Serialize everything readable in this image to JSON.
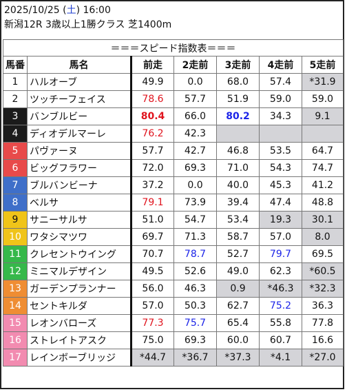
{
  "header": {
    "datetime_prefix": "2025/10/25 (",
    "weekday": "土",
    "datetime_suffix": ") 16:00",
    "race": "新潟12R 3歳以上1勝クラス 芝1400m"
  },
  "table": {
    "banner": "＝＝＝スピード指数表＝＝＝",
    "columns": [
      "馬番",
      "馬名",
      "前走",
      "2走前",
      "3走前",
      "4走前",
      "5走前"
    ],
    "rows": [
      {
        "num": "1",
        "bg": "#ffffff",
        "fg": "#111111",
        "name": "ハルオーブ",
        "vals": [
          {
            "v": "49.9"
          },
          {
            "v": "0.0"
          },
          {
            "v": "68.0"
          },
          {
            "v": "57.4"
          },
          {
            "v": "*31.9",
            "c": "gray"
          }
        ]
      },
      {
        "num": "2",
        "bg": "#ffffff",
        "fg": "#111111",
        "name": "ツッチーフェイス",
        "vals": [
          {
            "v": "78.6",
            "c": "red"
          },
          {
            "v": "57.7"
          },
          {
            "v": "51.9"
          },
          {
            "v": "59.0"
          },
          {
            "v": "59.0"
          }
        ]
      },
      {
        "num": "3",
        "bg": "#1b1b1b",
        "fg": "#ffffff",
        "name": "バンブルビー",
        "vals": [
          {
            "v": "80.4",
            "c": "red bold"
          },
          {
            "v": "66.0"
          },
          {
            "v": "80.2",
            "c": "blue bold"
          },
          {
            "v": "34.3"
          },
          {
            "v": "9.1",
            "c": "gray"
          }
        ]
      },
      {
        "num": "4",
        "bg": "#1b1b1b",
        "fg": "#ffffff",
        "name": "ディオデルマーレ",
        "vals": [
          {
            "v": "76.2",
            "c": "red"
          },
          {
            "v": "42.3"
          },
          {
            "v": "",
            "c": "gray"
          },
          {
            "v": "",
            "c": "gray"
          },
          {
            "v": "",
            "c": "gray"
          }
        ]
      },
      {
        "num": "5",
        "bg": "#e84a4a",
        "fg": "#ffffff",
        "name": "パヴァーヌ",
        "vals": [
          {
            "v": "57.7"
          },
          {
            "v": "42.7"
          },
          {
            "v": "46.8"
          },
          {
            "v": "53.5"
          },
          {
            "v": "64.7"
          }
        ]
      },
      {
        "num": "6",
        "bg": "#e84a4a",
        "fg": "#ffffff",
        "name": "ビッグフラワー",
        "vals": [
          {
            "v": "72.0"
          },
          {
            "v": "69.3"
          },
          {
            "v": "71.0"
          },
          {
            "v": "54.3"
          },
          {
            "v": "74.7"
          }
        ]
      },
      {
        "num": "7",
        "bg": "#3f6fc9",
        "fg": "#ffffff",
        "name": "ブルバンビーナ",
        "vals": [
          {
            "v": "37.2"
          },
          {
            "v": "0.0"
          },
          {
            "v": "40.0"
          },
          {
            "v": "45.3"
          },
          {
            "v": "41.2"
          }
        ]
      },
      {
        "num": "8",
        "bg": "#3f6fc9",
        "fg": "#ffffff",
        "name": "ベルサ",
        "vals": [
          {
            "v": "79.1",
            "c": "red"
          },
          {
            "v": "73.9"
          },
          {
            "v": "39.4"
          },
          {
            "v": "47.4"
          },
          {
            "v": "48.8"
          }
        ]
      },
      {
        "num": "9",
        "bg": "#f0c419",
        "fg": "#111111",
        "name": "サニーサルサ",
        "vals": [
          {
            "v": "51.0"
          },
          {
            "v": "54.7"
          },
          {
            "v": "53.4"
          },
          {
            "v": "19.3",
            "c": "gray"
          },
          {
            "v": "30.1",
            "c": "gray"
          }
        ]
      },
      {
        "num": "10",
        "bg": "#f0c419",
        "fg": "#ffffff",
        "name": "ワタシマツワ",
        "vals": [
          {
            "v": "69.7"
          },
          {
            "v": "71.3"
          },
          {
            "v": "58.7"
          },
          {
            "v": "57.0"
          },
          {
            "v": "8.0",
            "c": "gray"
          }
        ]
      },
      {
        "num": "11",
        "bg": "#36b84a",
        "fg": "#ffffff",
        "name": "クレセントウイング",
        "vals": [
          {
            "v": "70.7"
          },
          {
            "v": "78.7",
            "c": "blue"
          },
          {
            "v": "52.7"
          },
          {
            "v": "79.7",
            "c": "blue"
          },
          {
            "v": "69.5"
          }
        ]
      },
      {
        "num": "12",
        "bg": "#36b84a",
        "fg": "#ffffff",
        "name": "ミニマルデザイン",
        "vals": [
          {
            "v": "49.5"
          },
          {
            "v": "52.6"
          },
          {
            "v": "49.0"
          },
          {
            "v": "62.3"
          },
          {
            "v": "*60.5",
            "c": "gray"
          }
        ]
      },
      {
        "num": "13",
        "bg": "#ef8d33",
        "fg": "#ffffff",
        "name": "ガーデンプランナー",
        "vals": [
          {
            "v": "56.0"
          },
          {
            "v": "46.3"
          },
          {
            "v": "0.9",
            "c": "gray"
          },
          {
            "v": "*46.3",
            "c": "gray"
          },
          {
            "v": "*32.3",
            "c": "gray"
          }
        ]
      },
      {
        "num": "14",
        "bg": "#ef8d33",
        "fg": "#ffffff",
        "name": "セントキルダ",
        "vals": [
          {
            "v": "57.0"
          },
          {
            "v": "50.3"
          },
          {
            "v": "62.7"
          },
          {
            "v": "75.2",
            "c": "blue"
          },
          {
            "v": "36.3"
          }
        ]
      },
      {
        "num": "15",
        "bg": "#f28bb0",
        "fg": "#ffffff",
        "name": "レオンバローズ",
        "vals": [
          {
            "v": "77.3",
            "c": "red"
          },
          {
            "v": "75.7",
            "c": "blue"
          },
          {
            "v": "65.4"
          },
          {
            "v": "55.8"
          },
          {
            "v": "77.8"
          }
        ]
      },
      {
        "num": "16",
        "bg": "#f28bb0",
        "fg": "#ffffff",
        "name": "ストレイトアスク",
        "vals": [
          {
            "v": "75.0"
          },
          {
            "v": "69.3"
          },
          {
            "v": "60.0"
          },
          {
            "v": "60.7"
          },
          {
            "v": "16.6"
          }
        ]
      },
      {
        "num": "17",
        "bg": "#f28bb0",
        "fg": "#ffffff",
        "name": "レインボーブリッジ",
        "vals": [
          {
            "v": "*44.7",
            "c": "gray"
          },
          {
            "v": "*36.7",
            "c": "gray"
          },
          {
            "v": "*37.3",
            "c": "gray"
          },
          {
            "v": "*4.1",
            "c": "gray"
          },
          {
            "v": "*27.0",
            "c": "gray"
          }
        ]
      }
    ]
  }
}
